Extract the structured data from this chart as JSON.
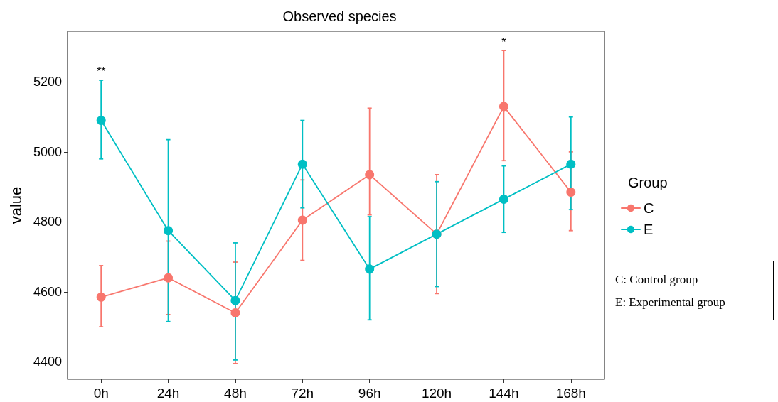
{
  "chart_data": {
    "type": "line",
    "title": "Observed species",
    "ylabel": "value",
    "legend_title": "Group",
    "categories": [
      "0h",
      "24h",
      "48h",
      "72h",
      "96h",
      "120h",
      "144h",
      "168h"
    ],
    "series": [
      {
        "name": "C",
        "color": "#f8766d",
        "values": [
          4585,
          4640,
          4540,
          4805,
          4935,
          4765,
          5130,
          4885
        ],
        "errors": [
          [
            4500,
            4675
          ],
          [
            4535,
            4745
          ],
          [
            4395,
            4685
          ],
          [
            4690,
            4920
          ],
          [
            4820,
            5125
          ],
          [
            4595,
            4935
          ],
          [
            4975,
            5290
          ],
          [
            4775,
            5000
          ]
        ]
      },
      {
        "name": "E",
        "color": "#00bfc4",
        "values": [
          5090,
          4775,
          4575,
          4965,
          4665,
          4765,
          4865,
          4965
        ],
        "errors": [
          [
            4980,
            5205
          ],
          [
            4515,
            5035
          ],
          [
            4405,
            4740
          ],
          [
            4840,
            5090
          ],
          [
            4520,
            4815
          ],
          [
            4615,
            4915
          ],
          [
            4770,
            4960
          ],
          [
            4835,
            5100
          ]
        ]
      }
    ],
    "ylim": [
      4350,
      5345
    ],
    "yticks": [
      4400,
      4600,
      4800,
      5000,
      5200
    ],
    "grid": false,
    "legend": "right",
    "marker": "circle",
    "line_style": "solid",
    "annotations": [
      {
        "text": "**",
        "x": "0h",
        "y": 5205
      },
      {
        "text": "*",
        "x": "144h",
        "y": 5290
      },
      "C: Control group",
      "E: Experimental group"
    ]
  }
}
